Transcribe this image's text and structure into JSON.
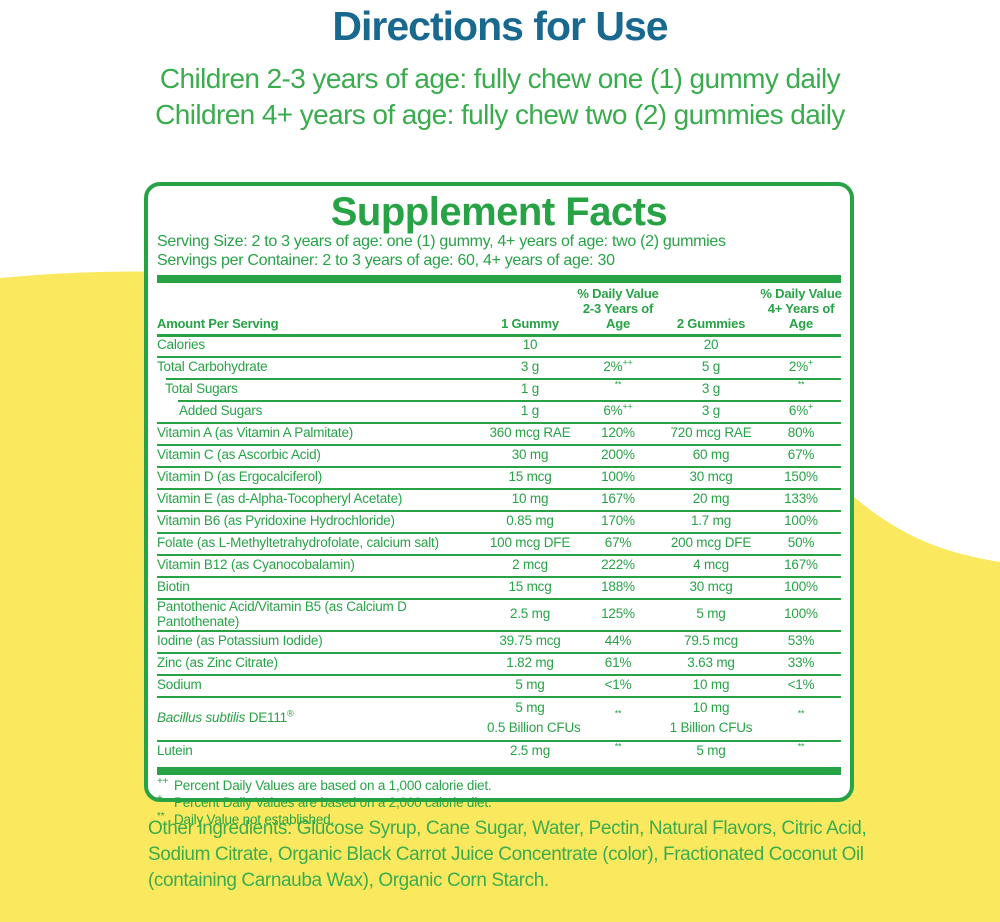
{
  "colors": {
    "green": "#27a346",
    "dirgreen": "#3bac4e",
    "blue": "#19698f",
    "yellow": "#fae95f"
  },
  "directions": {
    "title": "Directions for Use",
    "line1": "Children 2-3 years of age: fully chew one (1) gummy daily",
    "line2": "Children 4+ years of age: fully chew two (2) gummies daily"
  },
  "panel": {
    "title": "Supplement Facts",
    "serving_size": "Serving Size: 2 to 3 years of age: one (1) gummy, 4+ years of age: two (2) gummies",
    "servings_per_container": "Servings per Container: 2 to 3 years of age: 60, 4+ years of age: 30",
    "columns": {
      "amount": "Amount Per Serving",
      "g1": "1 Gummy",
      "dv1_l1": "% Daily Value",
      "dv1_l2": "2-3 Years of Age",
      "g2": "2 Gummies",
      "dv2_l1": "% Daily Value",
      "dv2_l2": "4+ Years of Age"
    },
    "rows": [
      {
        "name": "Calories",
        "g1": "10",
        "g2": "20"
      },
      {
        "name": "Total Carbohydrate",
        "g1": "3 g",
        "dv1": "2%",
        "dv1_sup": "++",
        "g2": "5 g",
        "dv2": "2%",
        "dv2_sup": "+"
      },
      {
        "name": "Total Sugars",
        "indent": 1,
        "g1": "1 g",
        "dv1_sup": "**",
        "g2": "3 g",
        "dv2_sup": "**"
      },
      {
        "name": "Added Sugars",
        "indent": 2,
        "g1": "1 g",
        "dv1": "6%",
        "dv1_sup": "++",
        "g2": "3 g",
        "dv2": "6%",
        "dv2_sup": "+"
      },
      {
        "name": "Vitamin A (as Vitamin A Palmitate)",
        "g1": "360 mcg RAE",
        "dv1": "120%",
        "g2": "720 mcg RAE",
        "dv2": "80%"
      },
      {
        "name": "Vitamin C (as Ascorbic Acid)",
        "g1": "30 mg",
        "dv1": "200%",
        "g2": "60 mg",
        "dv2": "67%"
      },
      {
        "name": "Vitamin D (as Ergocalciferol)",
        "g1": "15 mcg",
        "dv1": "100%",
        "g2": "30 mcg",
        "dv2": "150%"
      },
      {
        "name": "Vitamin E (as d-Alpha-Tocopheryl Acetate)",
        "g1": "10 mg",
        "dv1": "167%",
        "g2": "20 mg",
        "dv2": "133%"
      },
      {
        "name": "Vitamin B6 (as Pyridoxine Hydrochloride)",
        "g1": "0.85 mg",
        "dv1": "170%",
        "g2": "1.7 mg",
        "dv2": "100%"
      },
      {
        "name": "Folate (as L-Methyltetrahydrofolate, calcium salt)",
        "g1": "100 mcg DFE",
        "dv1": "67%",
        "g2": "200 mcg DFE",
        "dv2": "50%"
      },
      {
        "name": "Vitamin B12 (as Cyanocobalamin)",
        "g1": "2 mcg",
        "dv1": "222%",
        "g2": "4 mcg",
        "dv2": "167%"
      },
      {
        "name": "Biotin",
        "g1": "15 mcg",
        "dv1": "188%",
        "g2": "30 mcg",
        "dv2": "100%"
      },
      {
        "name": "Pantothenic Acid/Vitamin B5 (as Calcium D Pantothenate)",
        "g1": "2.5 mg",
        "dv1": "125%",
        "g2": "5 mg",
        "dv2": "100%"
      },
      {
        "name": "Iodine (as Potassium Iodide)",
        "g1": "39.75 mcg",
        "dv1": "44%",
        "g2": "79.5 mcg",
        "dv2": "53%"
      },
      {
        "name": "Zinc (as Zinc Citrate)",
        "g1": "1.82 mg",
        "dv1": "61%",
        "g2": "3.63 mg",
        "dv2": "33%"
      },
      {
        "name": "Sodium",
        "g1": "5 mg",
        "dv1": "<1%",
        "g2": "10 mg",
        "dv2": "<1%"
      },
      {
        "name_italic": "Bacillus subtilis",
        "name": " DE111",
        "name_sup": "®",
        "g1": [
          "5 mg",
          "0.5 Billion CFUs"
        ],
        "dv1_sup": "**",
        "g2": [
          "10 mg",
          "1 Billion CFUs"
        ],
        "dv2_sup": "**"
      },
      {
        "name": "Lutein",
        "g1": "2.5 mg",
        "dv1_sup": "**",
        "g2": "5 mg",
        "dv2_sup": "**"
      }
    ],
    "footnotes": [
      {
        "marker": "++",
        "text": "Percent Daily Values are based on a 1,000 calorie diet."
      },
      {
        "marker": "+",
        "text": "Percent Daily Values are based on a 2,000 calorie diet."
      },
      {
        "marker": "**",
        "text": "Daily Value not established."
      }
    ]
  },
  "other_ingredients": "Other ingredients: Glucose Syrup, Cane Sugar, Water, Pectin, Natural Flavors, Citric Acid, Sodium Citrate, Organic Black Carrot Juice Concentrate (color), Fractionated Coconut Oil (containing Carnauba Wax), Organic Corn Starch."
}
